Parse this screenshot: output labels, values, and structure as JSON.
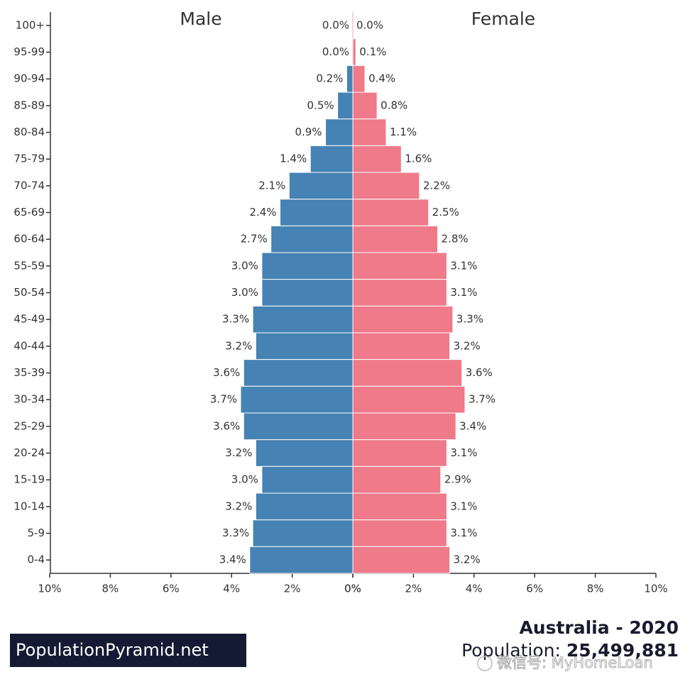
{
  "chart_data": {
    "type": "pyramid",
    "title": "Australia - 2020",
    "population_label": "Population:",
    "population": "25,499,881",
    "brand": "PopulationPyramid.net",
    "watermark": "微信号: MyHomeLoan",
    "categories": [
      "100+",
      "95-99",
      "90-94",
      "85-89",
      "80-84",
      "75-79",
      "70-74",
      "65-69",
      "60-64",
      "55-59",
      "50-54",
      "45-49",
      "40-44",
      "35-39",
      "30-34",
      "25-29",
      "20-24",
      "15-19",
      "10-14",
      "5-9",
      "0-4"
    ],
    "series": [
      {
        "name": "Male",
        "color": "#4682b4",
        "values": [
          0.0,
          0.0,
          0.2,
          0.5,
          0.9,
          1.4,
          2.1,
          2.4,
          2.7,
          3.0,
          3.0,
          3.3,
          3.2,
          3.6,
          3.7,
          3.6,
          3.2,
          3.0,
          3.2,
          3.3,
          3.4
        ],
        "value_labels": [
          "0.0%",
          "0.0%",
          "0.2%",
          "0.5%",
          "0.9%",
          "1.4%",
          "2.1%",
          "2.4%",
          "2.7%",
          "3.0%",
          "3.0%",
          "3.3%",
          "3.2%",
          "3.6%",
          "3.7%",
          "3.6%",
          "3.2%",
          "3.0%",
          "3.2%",
          "3.3%",
          "3.4%"
        ]
      },
      {
        "name": "Female",
        "color": "#ee7a8a",
        "values": [
          0.0,
          0.1,
          0.4,
          0.8,
          1.1,
          1.6,
          2.2,
          2.5,
          2.8,
          3.1,
          3.1,
          3.3,
          3.2,
          3.6,
          3.7,
          3.4,
          3.1,
          2.9,
          3.1,
          3.1,
          3.2
        ],
        "value_labels": [
          "0.0%",
          "0.1%",
          "0.4%",
          "0.8%",
          "1.1%",
          "1.6%",
          "2.2%",
          "2.5%",
          "2.8%",
          "3.1%",
          "3.1%",
          "3.3%",
          "3.2%",
          "3.6%",
          "3.7%",
          "3.4%",
          "3.1%",
          "2.9%",
          "3.1%",
          "3.1%",
          "3.2%"
        ]
      }
    ],
    "xlim": [
      0,
      10
    ],
    "xticks": [
      {
        "value": 0,
        "label": "0%"
      },
      {
        "value": 2,
        "label": "2%"
      },
      {
        "value": 4,
        "label": "4%"
      },
      {
        "value": 6,
        "label": "6%"
      },
      {
        "value": 8,
        "label": "8%"
      },
      {
        "value": 10,
        "label": "10%"
      }
    ]
  }
}
